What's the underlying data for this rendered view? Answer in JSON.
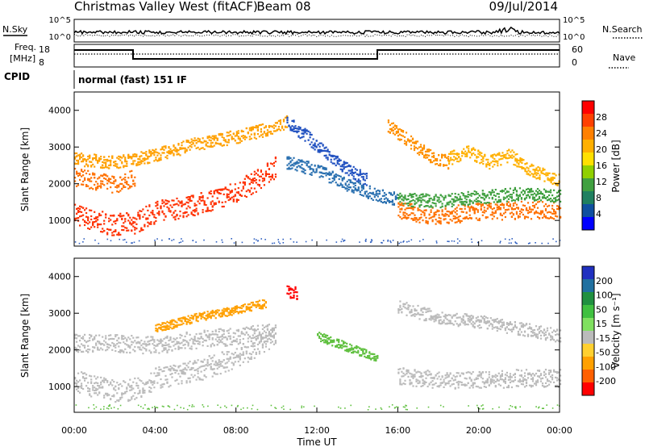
{
  "header": {
    "title": "Christmas Valley West (fitACF)",
    "beam": "Beam 08",
    "date": "09/Jul/2014"
  },
  "top_panels": {
    "nsky_label": "N.Sky",
    "nsearch_label": "N.Search",
    "noise_ticks_left": [
      "10^5",
      "10^0"
    ],
    "noise_ticks_right": [
      "10^5",
      "10^0"
    ],
    "freq_label": [
      "Freq.",
      "[MHz]"
    ],
    "freq_ticks": [
      "18",
      "8"
    ],
    "nave_label": "Nave",
    "nave_ticks": [
      "60",
      "0"
    ],
    "cpid_label": "CPID",
    "cpid_value": "normal (fast) 151 IF"
  },
  "colorbars": {
    "power": {
      "label": "Power [dB]",
      "ticks": [
        "28",
        "24",
        "20",
        "16",
        "12",
        "8",
        "4"
      ],
      "colors": [
        "#ff0000",
        "#ff4000",
        "#ff8000",
        "#ffb000",
        "#ffe000",
        "#90d000",
        "#40a040",
        "#208060",
        "#1050a0",
        "#0000ff"
      ]
    },
    "velocity": {
      "label": "Velocity [m s⁻¹]",
      "ticks": [
        "200",
        "100",
        "50",
        "15",
        "-15",
        "-50",
        "-100",
        "-200"
      ],
      "colors": [
        "#2030c0",
        "#2070a0",
        "#209040",
        "#40c040",
        "#80e060",
        "#bbbbbb",
        "#ffd030",
        "#ffa000",
        "#ff6000",
        "#ff0000"
      ]
    }
  },
  "chart_data": [
    {
      "type": "heatmap",
      "name": "power",
      "ylabel": "Slant Range [km]",
      "yticks": [
        "4000",
        "3000",
        "2000",
        "1000"
      ],
      "ylim": [
        300,
        4500
      ],
      "xlim": [
        0,
        24
      ],
      "bands": [
        {
          "x": [
            0,
            1,
            2,
            3,
            4,
            6,
            8,
            9,
            10
          ],
          "y": [
            1200,
            1000,
            900,
            950,
            1250,
            1450,
            1800,
            2100,
            2500
          ],
          "color": "#ff3000",
          "w": 5
        },
        {
          "x": [
            0,
            1,
            2,
            3
          ],
          "y": [
            2200,
            2100,
            2000,
            2200
          ],
          "color": "#ff7000",
          "w": 4
        },
        {
          "x": [
            0,
            2,
            4,
            6,
            8,
            9.5,
            10.5
          ],
          "y": [
            2700,
            2600,
            2800,
            3100,
            3300,
            3500,
            3700
          ],
          "color": "#ffa000",
          "w": 3
        },
        {
          "x": [
            10.5,
            11.5,
            12.5,
            13.5,
            14.5
          ],
          "y": [
            3700,
            3300,
            2800,
            2400,
            2100
          ],
          "color": "#2050c0",
          "w": 3
        },
        {
          "x": [
            10.5,
            12,
            13,
            14,
            15,
            16
          ],
          "y": [
            2600,
            2400,
            2100,
            1900,
            1700,
            1600
          ],
          "color": "#2a70b0",
          "w": 3
        },
        {
          "x": [
            16,
            17,
            18,
            20,
            22,
            24
          ],
          "y": [
            1300,
            1200,
            1150,
            1250,
            1300,
            1300
          ],
          "color": "#ff7000",
          "w": 4
        },
        {
          "x": [
            16,
            18,
            20,
            22,
            24
          ],
          "y": [
            1600,
            1550,
            1650,
            1750,
            1700
          ],
          "color": "#40a040",
          "w": 3
        },
        {
          "x": [
            15.5,
            16.5,
            17.5,
            18.5
          ],
          "y": [
            3600,
            3200,
            2800,
            2600
          ],
          "color": "#ff9000",
          "w": 3
        },
        {
          "x": [
            18.5,
            19.5,
            20.5,
            21.5,
            22.5,
            23.5,
            24
          ],
          "y": [
            2700,
            2900,
            2600,
            2800,
            2400,
            2200,
            2100
          ],
          "color": "#ffb000",
          "w": 3
        }
      ]
    },
    {
      "type": "heatmap",
      "name": "velocity",
      "ylabel": "Slant Range [km]",
      "yticks": [
        "4000",
        "3000",
        "2000",
        "1000"
      ],
      "ylim": [
        300,
        4500
      ],
      "xlim": [
        0,
        24
      ],
      "xlabel": "Time UT",
      "xticks": [
        "00:00",
        "04:00",
        "08:00",
        "12:00",
        "16:00",
        "20:00",
        "00:00"
      ],
      "bands": [
        {
          "x": [
            0,
            1,
            2,
            3,
            4,
            6,
            8,
            9,
            10
          ],
          "y": [
            1200,
            1000,
            900,
            950,
            1250,
            1450,
            1800,
            2100,
            2500
          ],
          "color": "#bbbbbb",
          "w": 5
        },
        {
          "x": [
            0,
            2,
            4,
            6,
            8,
            10
          ],
          "y": [
            2200,
            2200,
            2150,
            2300,
            2400,
            2500
          ],
          "color": "#bbbbbb",
          "w": 4
        },
        {
          "x": [
            4,
            6,
            8,
            9.5
          ],
          "y": [
            2600,
            2900,
            3100,
            3300
          ],
          "color": "#ffa000",
          "w": 2
        },
        {
          "x": [
            10.5,
            11
          ],
          "y": [
            3650,
            3550
          ],
          "color": "#ff0000",
          "w": 3
        },
        {
          "x": [
            12,
            13,
            14,
            15
          ],
          "y": [
            2400,
            2200,
            2000,
            1800
          ],
          "color": "#60c040",
          "w": 2
        },
        {
          "x": [
            16,
            18,
            20,
            22,
            24
          ],
          "y": [
            1300,
            1200,
            1200,
            1250,
            1250
          ],
          "color": "#bbbbbb",
          "w": 4
        },
        {
          "x": [
            16,
            18,
            20,
            22,
            24
          ],
          "y": [
            3200,
            2900,
            2800,
            2600,
            2400
          ],
          "color": "#bbbbbb",
          "w": 3
        }
      ]
    }
  ]
}
